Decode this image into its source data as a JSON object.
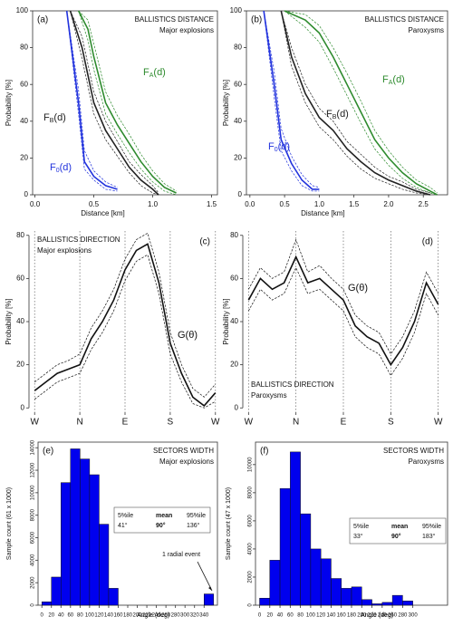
{
  "chart_data": [
    {
      "type": "line",
      "tag": "(a)",
      "title": "BALLISTICS DISTANCE",
      "subtitle": "Major explosions",
      "x_label": "Distance [km]",
      "y_label": "Probability [%]",
      "xlim": [
        -0.02,
        1.55
      ],
      "xticks": [
        {
          "value": 0,
          "label": "0.0"
        },
        0.5,
        {
          "value": 1,
          "label": "1.0"
        },
        1.5
      ],
      "ylim": [
        0,
        100
      ],
      "yticks": [
        0,
        20,
        40,
        60,
        80,
        100
      ],
      "frame": true,
      "series": [
        {
          "label": "F",
          "label_sub": "A",
          "label_tail": "(d)",
          "color": "#2e8b2e",
          "x": [
            0.37,
            0.45,
            0.5,
            0.6,
            0.7,
            0.8,
            0.9,
            1.0,
            1.1,
            1.2
          ],
          "values": [
            100,
            90,
            75,
            50,
            38,
            28,
            18,
            10,
            4,
            1
          ],
          "lower": [
            100,
            84,
            68,
            44,
            33,
            23,
            14,
            7,
            2,
            0
          ],
          "upper": [
            100,
            95,
            82,
            56,
            43,
            33,
            22,
            13,
            6,
            2
          ]
        },
        {
          "label": "F",
          "label_sub": "B",
          "label_tail": "(d)",
          "color": "#222222",
          "x": [
            0.3,
            0.4,
            0.5,
            0.6,
            0.7,
            0.8,
            0.9,
            1.0,
            1.05
          ],
          "values": [
            100,
            80,
            50,
            35,
            25,
            15,
            8,
            3,
            0
          ],
          "lower": [
            100,
            74,
            44,
            30,
            21,
            12,
            5,
            1,
            0
          ],
          "upper": [
            100,
            86,
            56,
            40,
            29,
            18,
            11,
            5,
            1
          ]
        },
        {
          "label": "F",
          "label_sub": "0",
          "label_tail": "(d)",
          "color": "#2233dd",
          "x": [
            0.27,
            0.37,
            0.42,
            0.5,
            0.6,
            0.7
          ],
          "values": [
            100,
            50,
            18,
            10,
            5,
            3
          ],
          "lower": [
            100,
            44,
            14,
            8,
            3,
            2
          ],
          "upper": [
            100,
            57,
            24,
            13,
            7,
            4
          ]
        }
      ]
    },
    {
      "type": "line",
      "tag": "(b)",
      "title": "BALLISTICS DISTANCE",
      "subtitle": "Paroxysms",
      "x_label": "Distance [km]",
      "y_label": "Probability [%]",
      "xlim": [
        -0.05,
        2.85
      ],
      "xticks": [
        {
          "value": 0,
          "label": "0.0"
        },
        0.5,
        {
          "value": 1,
          "label": "1.0"
        },
        1.5,
        {
          "value": 2,
          "label": "2.0"
        },
        2.5
      ],
      "ylim": [
        0,
        100
      ],
      "yticks": [
        0,
        20,
        40,
        60,
        80,
        100
      ],
      "frame": true,
      "series": [
        {
          "label": "F",
          "label_sub": "A",
          "label_tail": "(d)",
          "color": "#2e8b2e",
          "x": [
            0.5,
            0.8,
            1.0,
            1.2,
            1.4,
            1.6,
            1.8,
            2.0,
            2.2,
            2.4,
            2.6,
            2.7
          ],
          "values": [
            100,
            95,
            88,
            75,
            60,
            45,
            30,
            20,
            12,
            6,
            2,
            0
          ],
          "lower": [
            100,
            91,
            83,
            69,
            54,
            39,
            25,
            16,
            9,
            4,
            1,
            0
          ],
          "upper": [
            100,
            98,
            92,
            80,
            66,
            51,
            35,
            24,
            15,
            8,
            4,
            1
          ]
        },
        {
          "label": "F",
          "label_sub": "B",
          "label_tail": "(d)",
          "color": "#222222",
          "x": [
            0.45,
            0.6,
            0.8,
            1.0,
            1.2,
            1.4,
            1.6,
            1.8,
            2.0,
            2.2,
            2.4,
            2.6
          ],
          "values": [
            100,
            75,
            55,
            42,
            35,
            25,
            18,
            12,
            8,
            5,
            2,
            0
          ],
          "lower": [
            100,
            70,
            50,
            37,
            30,
            21,
            14,
            9,
            6,
            3,
            1,
            0
          ],
          "upper": [
            100,
            80,
            60,
            47,
            40,
            29,
            22,
            15,
            10,
            7,
            3,
            1
          ]
        },
        {
          "label": "F",
          "label_sub": "0",
          "label_tail": "(d)",
          "color": "#2233dd",
          "x": [
            0.2,
            0.35,
            0.45,
            0.6,
            0.75,
            0.9,
            1.0
          ],
          "values": [
            100,
            60,
            30,
            17,
            8,
            3,
            3
          ],
          "lower": [
            100,
            53,
            24,
            13,
            5,
            2,
            2
          ],
          "upper": [
            100,
            67,
            36,
            21,
            11,
            5,
            4
          ]
        }
      ]
    },
    {
      "type": "line",
      "tag": "(c)",
      "title": "BALLISTICS DIRECTION",
      "subtitle": "Major explosions",
      "y_label": "Probability [%]",
      "xlim": [
        -4,
        364
      ],
      "xticks": [
        {
          "value": 0,
          "label": "W"
        },
        {
          "value": 90,
          "label": "N"
        },
        {
          "value": 180,
          "label": "E"
        },
        {
          "value": 270,
          "label": "S"
        },
        {
          "value": 360,
          "label": "W"
        }
      ],
      "ylim": [
        -2,
        82
      ],
      "yticks": [
        0,
        20,
        40,
        60,
        80
      ],
      "vgrid": true,
      "x": [
        0,
        22.5,
        45,
        67.5,
        90,
        112.5,
        135,
        157.5,
        180,
        202.5,
        225,
        247.5,
        270,
        292.5,
        315,
        337.5,
        360
      ],
      "series": [
        {
          "label": "G(θ)",
          "color": "#111111",
          "values": [
            8,
            12,
            16,
            18,
            20,
            32,
            40,
            50,
            64,
            73,
            76,
            58,
            30,
            16,
            5,
            1,
            7
          ],
          "lower": [
            4,
            8,
            12,
            14,
            16,
            27,
            35,
            45,
            59,
            68,
            71,
            53,
            25,
            12,
            2,
            0,
            3
          ],
          "upper": [
            12,
            16,
            20,
            22,
            25,
            37,
            45,
            55,
            69,
            78,
            81,
            63,
            35,
            20,
            9,
            5,
            11
          ]
        }
      ]
    },
    {
      "type": "line",
      "tag": "(d)",
      "title": "BALLISTICS DIRECTION",
      "subtitle": "Paroxysms",
      "y_label": "Probability [%]",
      "xlim": [
        -4,
        364
      ],
      "xticks": [
        {
          "value": 0,
          "label": "W"
        },
        {
          "value": 90,
          "label": "N"
        },
        {
          "value": 180,
          "label": "E"
        },
        {
          "value": 270,
          "label": "S"
        },
        {
          "value": 360,
          "label": "W"
        }
      ],
      "ylim": [
        -2,
        82
      ],
      "yticks": [
        0,
        20,
        40,
        60,
        80
      ],
      "vgrid": true,
      "x": [
        0,
        22.5,
        45,
        67.5,
        90,
        112.5,
        135,
        157.5,
        180,
        202.5,
        225,
        247.5,
        270,
        292.5,
        315,
        337.5,
        360
      ],
      "series": [
        {
          "label": "G(θ)",
          "color": "#111111",
          "values": [
            50,
            60,
            55,
            58,
            70,
            58,
            60,
            55,
            50,
            38,
            33,
            30,
            20,
            28,
            40,
            58,
            48
          ],
          "lower": [
            45,
            55,
            50,
            53,
            65,
            53,
            55,
            50,
            45,
            33,
            28,
            25,
            15,
            23,
            35,
            53,
            43
          ],
          "upper": [
            55,
            65,
            60,
            63,
            78,
            63,
            66,
            60,
            55,
            43,
            38,
            35,
            25,
            33,
            45,
            63,
            53
          ]
        }
      ]
    },
    {
      "type": "histogram",
      "tag": "(e)",
      "title": "SECTORS WIDTH",
      "subtitle": "Major explosions",
      "x_label": "Angle (deg)",
      "y_label": "Sample count (61 x 1000)",
      "color": "#0000ee",
      "xlim": [
        -8,
        368
      ],
      "xticks": [
        0,
        20,
        40,
        60,
        80,
        100,
        120,
        140,
        160,
        180,
        200,
        220,
        240,
        260,
        280,
        300,
        320,
        340
      ],
      "ylim": [
        0,
        14500
      ],
      "yticks": [
        0,
        2000,
        4000,
        6000,
        8000,
        10000,
        12000,
        14000
      ],
      "frame": true,
      "bins": [
        0,
        20,
        40,
        60,
        80,
        100,
        120,
        140,
        160,
        180,
        200,
        220,
        240,
        260,
        280,
        300,
        320,
        340,
        360
      ],
      "counts": [
        300,
        2500,
        10900,
        13900,
        13000,
        11600,
        7200,
        1500,
        0,
        0,
        0,
        0,
        0,
        0,
        0,
        0,
        0,
        1000
      ],
      "stats": {
        "header": [
          "5%ile",
          "mean",
          "95%ile"
        ],
        "row": [
          "41°",
          "90°",
          "136°"
        ]
      },
      "annotation": "1 radial event"
    },
    {
      "type": "histogram",
      "tag": "(f)",
      "title": "SECTORS WIDTH",
      "subtitle": "Paroxysms",
      "x_label": "Angle (deg)",
      "y_label": "Sample count (47 x 1000)",
      "color": "#0000ee",
      "xlim": [
        -8,
        368
      ],
      "xticks": [
        0,
        20,
        40,
        60,
        80,
        100,
        120,
        140,
        160,
        180,
        200,
        220,
        240,
        260,
        280,
        300
      ],
      "ylim": [
        0,
        11600
      ],
      "yticks": [
        0,
        2000,
        4000,
        6000,
        8000,
        10000
      ],
      "frame": true,
      "bins": [
        0,
        20,
        40,
        60,
        80,
        100,
        120,
        140,
        160,
        180,
        200,
        220,
        240,
        260,
        280,
        300
      ],
      "counts": [
        500,
        3200,
        8300,
        10900,
        6500,
        4000,
        3300,
        1900,
        1200,
        1300,
        400,
        100,
        200,
        700,
        300
      ],
      "stats": {
        "header": [
          "5%ile",
          "mean",
          "95%ile"
        ],
        "row": [
          "33°",
          "90°",
          "183°"
        ]
      }
    }
  ]
}
